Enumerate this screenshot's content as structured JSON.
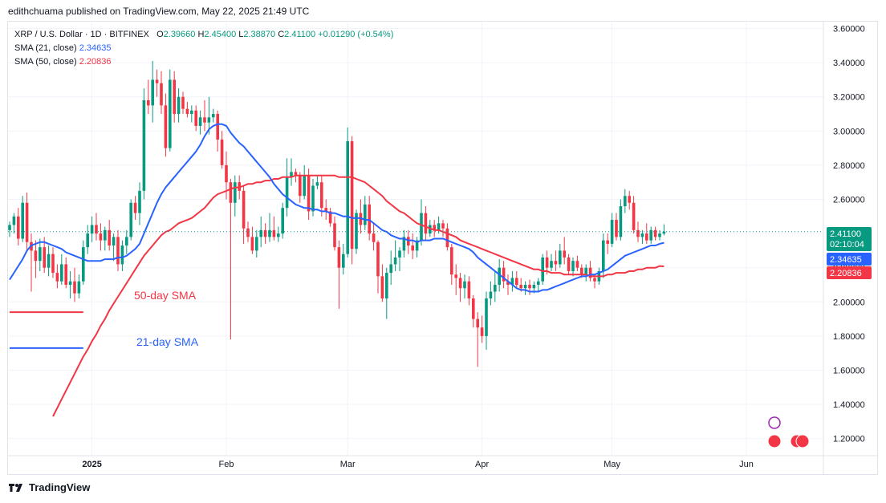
{
  "header": {
    "text": "edithchuama published on TradingView.com, May 22, 2025 21:49 UTC"
  },
  "legend": {
    "symbol": "XRP / U.S. Dollar · 1D · BITFINEX",
    "o_label": "O",
    "o": "2.39660",
    "h_label": "H",
    "h": "2.45400",
    "l_label": "L",
    "l": "2.38870",
    "c_label": "C",
    "c": "2.41100",
    "change": "+0.01290 (+0.54%)",
    "sma21_label": "SMA (21, close)",
    "sma21_value": "2.34635",
    "sma50_label": "SMA (50, close)",
    "sma50_value": "2.20836"
  },
  "annotations": {
    "sma50": "50-day SMA",
    "sma21": "21-day SMA"
  },
  "price_tags": {
    "last": "2.41100",
    "countdown": "02:10:04",
    "sma21": "2.34635",
    "sma50": "2.20836"
  },
  "footer": {
    "brand": "TradingView"
  },
  "colors": {
    "up": "#089981",
    "down": "#f23645",
    "sma21": "#2962ff",
    "sma50": "#f23645",
    "grid": "#f0f3fa"
  },
  "chart_data": {
    "type": "candlestick",
    "ylim": [
      1.1,
      3.64
    ],
    "y_ticks": [
      "3.60000",
      "3.40000",
      "3.20000",
      "3.00000",
      "2.80000",
      "2.60000",
      "2.40000",
      "2.20000",
      "2.00000",
      "1.80000",
      "1.60000",
      "1.40000",
      "1.20000"
    ],
    "x_ticks": [
      {
        "label": "2025",
        "day": 19
      },
      {
        "label": "Feb",
        "day": 50
      },
      {
        "label": "Mar",
        "day": 78
      },
      {
        "label": "Apr",
        "day": 109
      },
      {
        "label": "May",
        "day": 139
      },
      {
        "label": "Jun",
        "day": 170
      }
    ],
    "candles": [
      [
        2.42,
        2.47,
        2.38,
        2.45
      ],
      [
        2.45,
        2.52,
        2.4,
        2.5
      ],
      [
        2.5,
        2.55,
        2.33,
        2.37
      ],
      [
        2.37,
        2.62,
        2.35,
        2.58
      ],
      [
        2.58,
        2.64,
        2.3,
        2.35
      ],
      [
        2.35,
        2.4,
        2.06,
        2.3
      ],
      [
        2.3,
        2.36,
        2.14,
        2.24
      ],
      [
        2.24,
        2.37,
        2.18,
        2.32
      ],
      [
        2.32,
        2.38,
        2.17,
        2.2
      ],
      [
        2.2,
        2.33,
        2.15,
        2.28
      ],
      [
        2.28,
        2.32,
        2.14,
        2.17
      ],
      [
        2.17,
        2.22,
        2.08,
        2.12
      ],
      [
        2.12,
        2.28,
        2.1,
        2.22
      ],
      [
        2.22,
        2.26,
        2.08,
        2.1
      ],
      [
        2.1,
        2.18,
        2.02,
        2.12
      ],
      [
        2.12,
        2.2,
        2.0,
        2.05
      ],
      [
        2.05,
        2.16,
        2.02,
        2.12
      ],
      [
        2.12,
        2.36,
        2.1,
        2.32
      ],
      [
        2.32,
        2.45,
        2.28,
        2.4
      ],
      [
        2.4,
        2.5,
        2.35,
        2.45
      ],
      [
        2.45,
        2.52,
        2.36,
        2.4
      ],
      [
        2.4,
        2.46,
        2.3,
        2.36
      ],
      [
        2.36,
        2.44,
        2.3,
        2.42
      ],
      [
        2.42,
        2.48,
        2.3,
        2.33
      ],
      [
        2.33,
        2.4,
        2.24,
        2.38
      ],
      [
        2.38,
        2.42,
        2.18,
        2.22
      ],
      [
        2.22,
        2.36,
        2.18,
        2.33
      ],
      [
        2.33,
        2.42,
        2.28,
        2.38
      ],
      [
        2.38,
        2.6,
        2.36,
        2.58
      ],
      [
        2.58,
        2.62,
        2.48,
        2.52
      ],
      [
        2.52,
        2.7,
        2.45,
        2.65
      ],
      [
        2.65,
        3.25,
        2.6,
        3.18
      ],
      [
        3.18,
        3.3,
        3.1,
        3.15
      ],
      [
        3.15,
        3.41,
        3.05,
        3.3
      ],
      [
        3.3,
        3.36,
        3.2,
        3.28
      ],
      [
        3.28,
        3.35,
        3.1,
        3.15
      ],
      [
        3.15,
        3.22,
        2.85,
        2.9
      ],
      [
        2.9,
        3.36,
        2.88,
        3.3
      ],
      [
        3.3,
        3.35,
        3.05,
        3.1
      ],
      [
        3.1,
        3.25,
        3.05,
        3.2
      ],
      [
        3.2,
        3.23,
        3.1,
        3.13
      ],
      [
        3.13,
        3.17,
        3.08,
        3.1
      ],
      [
        3.1,
        3.15,
        3.05,
        3.12
      ],
      [
        3.12,
        3.15,
        3.0,
        3.03
      ],
      [
        3.03,
        3.12,
        2.98,
        3.08
      ],
      [
        3.08,
        3.18,
        3.0,
        3.05
      ],
      [
        3.05,
        3.2,
        2.98,
        3.08
      ],
      [
        3.08,
        3.13,
        3.05,
        3.1
      ],
      [
        3.1,
        3.12,
        2.88,
        2.95
      ],
      [
        2.95,
        3.0,
        2.78,
        2.8
      ],
      [
        2.8,
        2.88,
        2.6,
        2.7
      ],
      [
        2.7,
        2.72,
        1.78,
        2.58
      ],
      [
        2.58,
        2.74,
        2.5,
        2.7
      ],
      [
        2.7,
        2.74,
        2.6,
        2.65
      ],
      [
        2.65,
        2.68,
        2.34,
        2.43
      ],
      [
        2.43,
        2.47,
        2.35,
        2.38
      ],
      [
        2.38,
        2.44,
        2.28,
        2.3
      ],
      [
        2.3,
        2.42,
        2.26,
        2.38
      ],
      [
        2.38,
        2.5,
        2.32,
        2.42
      ],
      [
        2.42,
        2.46,
        2.34,
        2.38
      ],
      [
        2.38,
        2.52,
        2.35,
        2.42
      ],
      [
        2.42,
        2.5,
        2.36,
        2.38
      ],
      [
        2.38,
        2.44,
        2.35,
        2.4
      ],
      [
        2.4,
        2.58,
        2.37,
        2.55
      ],
      [
        2.55,
        2.84,
        2.5,
        2.73
      ],
      [
        2.73,
        2.84,
        2.68,
        2.76
      ],
      [
        2.76,
        2.78,
        2.7,
        2.74
      ],
      [
        2.74,
        2.76,
        2.58,
        2.62
      ],
      [
        2.62,
        2.8,
        2.6,
        2.74
      ],
      [
        2.74,
        2.78,
        2.48,
        2.53
      ],
      [
        2.53,
        2.72,
        2.5,
        2.68
      ],
      [
        2.68,
        2.74,
        2.66,
        2.7
      ],
      [
        2.7,
        2.74,
        2.5,
        2.55
      ],
      [
        2.55,
        2.6,
        2.48,
        2.53
      ],
      [
        2.53,
        2.55,
        2.44,
        2.46
      ],
      [
        2.46,
        2.5,
        2.3,
        2.32
      ],
      [
        2.32,
        2.36,
        1.96,
        2.2
      ],
      [
        2.2,
        2.34,
        2.16,
        2.28
      ],
      [
        2.28,
        3.02,
        2.26,
        2.94
      ],
      [
        2.94,
        2.97,
        2.22,
        2.31
      ],
      [
        2.31,
        2.54,
        2.28,
        2.52
      ],
      [
        2.52,
        2.6,
        2.4,
        2.45
      ],
      [
        2.45,
        2.62,
        2.42,
        2.57
      ],
      [
        2.57,
        2.62,
        2.36,
        2.4
      ],
      [
        2.4,
        2.46,
        2.3,
        2.35
      ],
      [
        2.35,
        2.36,
        2.05,
        2.15
      ],
      [
        2.15,
        2.22,
        2.0,
        2.02
      ],
      [
        2.02,
        2.2,
        1.9,
        2.17
      ],
      [
        2.17,
        2.3,
        2.1,
        2.22
      ],
      [
        2.22,
        2.36,
        2.18,
        2.26
      ],
      [
        2.26,
        2.32,
        2.18,
        2.3
      ],
      [
        2.3,
        2.42,
        2.26,
        2.38
      ],
      [
        2.38,
        2.42,
        2.28,
        2.33
      ],
      [
        2.33,
        2.4,
        2.25,
        2.3
      ],
      [
        2.3,
        2.38,
        2.26,
        2.36
      ],
      [
        2.36,
        2.6,
        2.33,
        2.52
      ],
      [
        2.52,
        2.56,
        2.36,
        2.4
      ],
      [
        2.4,
        2.48,
        2.38,
        2.45
      ],
      [
        2.45,
        2.48,
        2.38,
        2.42
      ],
      [
        2.42,
        2.5,
        2.4,
        2.46
      ],
      [
        2.46,
        2.48,
        2.38,
        2.43
      ],
      [
        2.43,
        2.46,
        2.3,
        2.32
      ],
      [
        2.32,
        2.34,
        2.1,
        2.16
      ],
      [
        2.16,
        2.22,
        2.04,
        2.14
      ],
      [
        2.14,
        2.17,
        2.0,
        2.08
      ],
      [
        2.08,
        2.16,
        2.02,
        2.12
      ],
      [
        2.12,
        2.15,
        1.98,
        2.02
      ],
      [
        2.02,
        2.04,
        1.85,
        1.9
      ],
      [
        1.9,
        1.94,
        1.62,
        1.85
      ],
      [
        1.85,
        1.92,
        1.76,
        1.8
      ],
      [
        1.8,
        2.06,
        1.72,
        2.02
      ],
      [
        2.02,
        2.12,
        1.98,
        2.06
      ],
      [
        2.06,
        2.18,
        2.0,
        2.1
      ],
      [
        2.1,
        2.25,
        2.06,
        2.2
      ],
      [
        2.2,
        2.24,
        2.08,
        2.12
      ],
      [
        2.12,
        2.16,
        2.04,
        2.1
      ],
      [
        2.1,
        2.18,
        2.06,
        2.14
      ],
      [
        2.14,
        2.18,
        2.08,
        2.1
      ],
      [
        2.1,
        2.14,
        2.06,
        2.08
      ],
      [
        2.08,
        2.12,
        2.04,
        2.1
      ],
      [
        2.1,
        2.13,
        2.04,
        2.08
      ],
      [
        2.08,
        2.12,
        2.05,
        2.1
      ],
      [
        2.1,
        2.14,
        2.06,
        2.12
      ],
      [
        2.12,
        2.28,
        2.1,
        2.26
      ],
      [
        2.26,
        2.3,
        2.16,
        2.2
      ],
      [
        2.2,
        2.28,
        2.18,
        2.24
      ],
      [
        2.24,
        2.3,
        2.18,
        2.22
      ],
      [
        2.22,
        2.34,
        2.2,
        2.3
      ],
      [
        2.3,
        2.38,
        2.22,
        2.26
      ],
      [
        2.26,
        2.28,
        2.16,
        2.18
      ],
      [
        2.18,
        2.26,
        2.15,
        2.24
      ],
      [
        2.24,
        2.27,
        2.18,
        2.2
      ],
      [
        2.2,
        2.22,
        2.14,
        2.16
      ],
      [
        2.16,
        2.22,
        2.12,
        2.2
      ],
      [
        2.2,
        2.24,
        2.12,
        2.14
      ],
      [
        2.14,
        2.16,
        2.08,
        2.12
      ],
      [
        2.12,
        2.2,
        2.1,
        2.18
      ],
      [
        2.18,
        2.4,
        2.14,
        2.36
      ],
      [
        2.36,
        2.4,
        2.28,
        2.34
      ],
      [
        2.34,
        2.52,
        2.32,
        2.48
      ],
      [
        2.48,
        2.52,
        2.36,
        2.38
      ],
      [
        2.38,
        2.6,
        2.36,
        2.56
      ],
      [
        2.56,
        2.66,
        2.52,
        2.62
      ],
      [
        2.62,
        2.65,
        2.54,
        2.58
      ],
      [
        2.58,
        2.62,
        2.4,
        2.42
      ],
      [
        2.42,
        2.47,
        2.35,
        2.38
      ],
      [
        2.38,
        2.42,
        2.34,
        2.4
      ],
      [
        2.4,
        2.46,
        2.34,
        2.36
      ],
      [
        2.36,
        2.44,
        2.34,
        2.42
      ],
      [
        2.42,
        2.44,
        2.36,
        2.38
      ],
      [
        2.38,
        2.42,
        2.36,
        2.4
      ],
      [
        2.4,
        2.454,
        2.389,
        2.411
      ]
    ],
    "sma21": [
      2.13,
      2.17,
      2.21,
      2.25,
      2.3,
      2.33,
      2.34,
      2.35,
      2.35,
      2.34,
      2.33,
      2.32,
      2.31,
      2.29,
      2.28,
      2.27,
      2.26,
      2.25,
      2.24,
      2.24,
      2.24,
      2.24,
      2.25,
      2.25,
      2.25,
      2.26,
      2.26,
      2.27,
      2.29,
      2.31,
      2.34,
      2.4,
      2.46,
      2.52,
      2.58,
      2.63,
      2.67,
      2.7,
      2.73,
      2.76,
      2.79,
      2.82,
      2.85,
      2.88,
      2.92,
      2.97,
      3.01,
      3.03,
      3.04,
      3.04,
      3.03,
      2.99,
      2.96,
      2.93,
      2.91,
      2.88,
      2.85,
      2.82,
      2.79,
      2.76,
      2.73,
      2.69,
      2.66,
      2.63,
      2.61,
      2.59,
      2.57,
      2.56,
      2.55,
      2.55,
      2.54,
      2.54,
      2.53,
      2.53,
      2.52,
      2.52,
      2.51,
      2.5,
      2.5,
      2.49,
      2.49,
      2.49,
      2.48,
      2.48,
      2.46,
      2.44,
      2.42,
      2.41,
      2.39,
      2.38,
      2.37,
      2.37,
      2.36,
      2.36,
      2.35,
      2.36,
      2.36,
      2.36,
      2.37,
      2.37,
      2.37,
      2.36,
      2.35,
      2.34,
      2.33,
      2.32,
      2.31,
      2.29,
      2.26,
      2.24,
      2.22,
      2.2,
      2.18,
      2.16,
      2.14,
      2.12,
      2.1,
      2.08,
      2.07,
      2.07,
      2.06,
      2.06,
      2.06,
      2.07,
      2.07,
      2.08,
      2.09,
      2.1,
      2.11,
      2.12,
      2.13,
      2.14,
      2.15,
      2.15,
      2.16,
      2.16,
      2.17,
      2.18,
      2.19,
      2.21,
      2.23,
      2.25,
      2.27,
      2.28,
      2.29,
      2.3,
      2.31,
      2.32,
      2.33,
      2.33,
      2.34,
      2.346
    ],
    "sma50": [
      null,
      null,
      null,
      null,
      null,
      null,
      null,
      null,
      null,
      null,
      1.33,
      1.38,
      1.43,
      1.48,
      1.53,
      1.58,
      1.63,
      1.68,
      1.72,
      1.77,
      1.81,
      1.86,
      1.9,
      1.95,
      1.99,
      2.03,
      2.07,
      2.11,
      2.15,
      2.19,
      2.23,
      2.27,
      2.3,
      2.33,
      2.36,
      2.39,
      2.41,
      2.42,
      2.44,
      2.46,
      2.47,
      2.48,
      2.49,
      2.51,
      2.53,
      2.55,
      2.58,
      2.61,
      2.63,
      2.64,
      2.65,
      2.66,
      2.67,
      2.67,
      2.68,
      2.69,
      2.69,
      2.7,
      2.7,
      2.71,
      2.71,
      2.72,
      2.72,
      2.73,
      2.73,
      2.73,
      2.74,
      2.74,
      2.74,
      2.74,
      2.74,
      2.74,
      2.74,
      2.74,
      2.74,
      2.74,
      2.73,
      2.73,
      2.73,
      2.73,
      2.72,
      2.71,
      2.7,
      2.68,
      2.66,
      2.64,
      2.62,
      2.59,
      2.57,
      2.55,
      2.53,
      2.52,
      2.5,
      2.48,
      2.46,
      2.45,
      2.44,
      2.43,
      2.42,
      2.42,
      2.41,
      2.4,
      2.39,
      2.38,
      2.36,
      2.35,
      2.34,
      2.33,
      2.32,
      2.31,
      2.3,
      2.29,
      2.28,
      2.27,
      2.26,
      2.25,
      2.24,
      2.23,
      2.22,
      2.21,
      2.2,
      2.19,
      2.19,
      2.18,
      2.18,
      2.17,
      2.17,
      2.17,
      2.16,
      2.16,
      2.16,
      2.16,
      2.16,
      2.16,
      2.15,
      2.15,
      2.15,
      2.15,
      2.16,
      2.16,
      2.17,
      2.17,
      2.17,
      2.18,
      2.18,
      2.19,
      2.19,
      2.2,
      2.2,
      2.2,
      2.21,
      2.208
    ],
    "reference_lines": [
      {
        "name": "sma50-reference",
        "y": 1.94,
        "x0": 0,
        "x1": 17,
        "color": "#f23645"
      },
      {
        "name": "sma21-reference",
        "y": 1.73,
        "x0": 0,
        "x1": 17,
        "color": "#2962ff"
      }
    ],
    "last_price_line": 2.411,
    "x_day_range": [
      0,
      169
    ]
  }
}
